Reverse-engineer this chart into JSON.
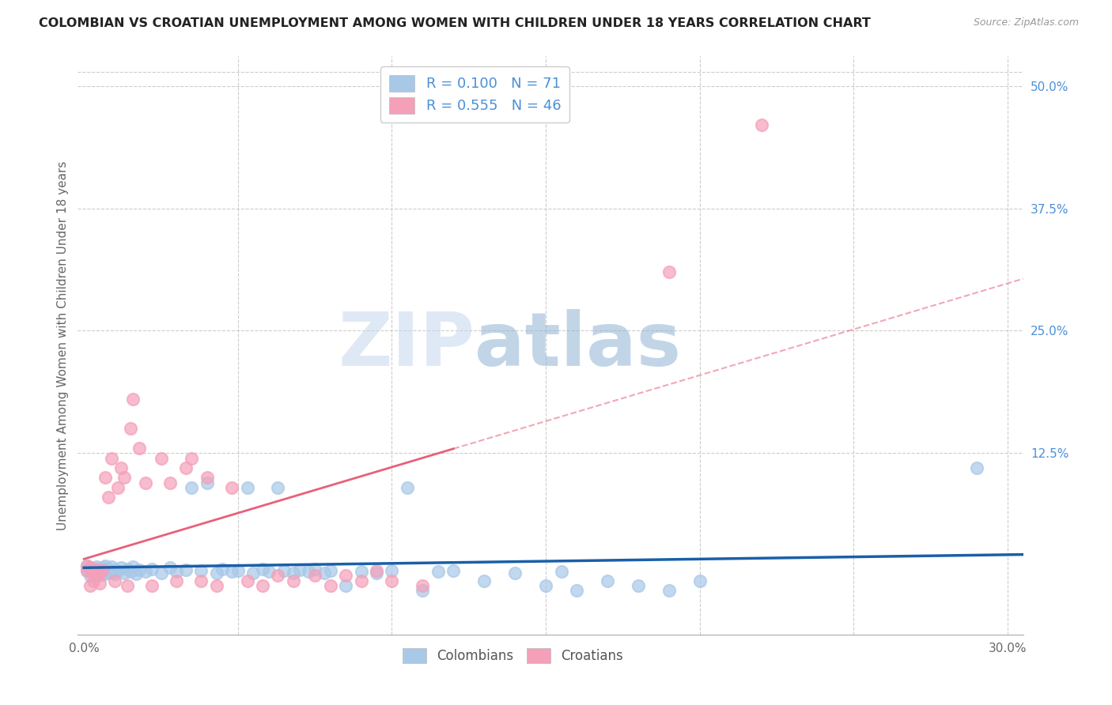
{
  "title": "COLOMBIAN VS CROATIAN UNEMPLOYMENT AMONG WOMEN WITH CHILDREN UNDER 18 YEARS CORRELATION CHART",
  "source": "Source: ZipAtlas.com",
  "ylabel": "Unemployment Among Women with Children Under 18 years",
  "xlabel_colombians": "Colombians",
  "xlabel_croatians": "Croatians",
  "xlim": [
    -0.002,
    0.305
  ],
  "ylim": [
    -0.06,
    0.53
  ],
  "xticks": [
    0.0,
    0.05,
    0.1,
    0.15,
    0.2,
    0.25,
    0.3
  ],
  "xtick_labels": [
    "0.0%",
    "",
    "",
    "",
    "",
    "",
    "30.0%"
  ],
  "ytick_vals_right": [
    0.5,
    0.375,
    0.25,
    0.125
  ],
  "ytick_labels_right": [
    "50.0%",
    "37.5%",
    "25.0%",
    "12.5%"
  ],
  "R_colombian": 0.1,
  "N_colombian": 71,
  "R_croatian": 0.555,
  "N_croatian": 46,
  "colombian_color": "#a8c8e8",
  "croatian_color": "#f4a0b8",
  "colombian_line_color": "#1a5fa8",
  "croatian_line_color": "#e8607a",
  "watermark_zip": "ZIP",
  "watermark_atlas": "atlas",
  "watermark_color_zip": "#c8d8ee",
  "watermark_color_atlas": "#a8c0d8",
  "colombian_x": [
    0.001,
    0.001,
    0.002,
    0.002,
    0.003,
    0.003,
    0.004,
    0.004,
    0.005,
    0.005,
    0.006,
    0.006,
    0.007,
    0.007,
    0.008,
    0.008,
    0.009,
    0.009,
    0.01,
    0.01,
    0.011,
    0.012,
    0.013,
    0.014,
    0.015,
    0.016,
    0.017,
    0.018,
    0.02,
    0.022,
    0.025,
    0.028,
    0.03,
    0.033,
    0.035,
    0.038,
    0.04,
    0.043,
    0.045,
    0.048,
    0.05,
    0.053,
    0.055,
    0.058,
    0.06,
    0.063,
    0.065,
    0.068,
    0.07,
    0.073,
    0.075,
    0.078,
    0.08,
    0.085,
    0.09,
    0.095,
    0.1,
    0.105,
    0.11,
    0.115,
    0.12,
    0.13,
    0.14,
    0.15,
    0.155,
    0.16,
    0.17,
    0.18,
    0.19,
    0.2,
    0.29
  ],
  "colombian_y": [
    0.005,
    0.01,
    0.008,
    0.0,
    0.004,
    0.007,
    0.003,
    0.009,
    0.006,
    0.002,
    0.008,
    0.001,
    0.005,
    0.01,
    0.007,
    0.003,
    0.009,
    0.004,
    0.006,
    0.002,
    0.005,
    0.008,
    0.003,
    0.007,
    0.004,
    0.009,
    0.002,
    0.006,
    0.004,
    0.007,
    0.003,
    0.008,
    0.004,
    0.006,
    0.09,
    0.005,
    0.095,
    0.003,
    0.007,
    0.004,
    0.005,
    0.09,
    0.003,
    0.007,
    0.004,
    0.09,
    0.005,
    0.003,
    0.006,
    0.004,
    0.007,
    0.003,
    0.005,
    -0.01,
    0.004,
    0.003,
    0.005,
    0.09,
    -0.015,
    0.004,
    0.005,
    -0.005,
    0.003,
    -0.01,
    0.004,
    -0.015,
    -0.005,
    -0.01,
    -0.015,
    -0.005,
    0.11
  ],
  "croatian_x": [
    0.001,
    0.001,
    0.002,
    0.002,
    0.003,
    0.003,
    0.004,
    0.004,
    0.005,
    0.005,
    0.006,
    0.007,
    0.008,
    0.009,
    0.01,
    0.011,
    0.012,
    0.013,
    0.014,
    0.015,
    0.016,
    0.018,
    0.02,
    0.022,
    0.025,
    0.028,
    0.03,
    0.033,
    0.035,
    0.038,
    0.04,
    0.043,
    0.048,
    0.053,
    0.058,
    0.063,
    0.068,
    0.075,
    0.08,
    0.085,
    0.09,
    0.095,
    0.1,
    0.11,
    0.19,
    0.22
  ],
  "croatian_y": [
    0.01,
    0.005,
    -0.01,
    0.008,
    -0.005,
    0.004,
    0.0,
    0.007,
    -0.008,
    0.003,
    0.006,
    0.1,
    0.08,
    0.12,
    -0.005,
    0.09,
    0.11,
    0.1,
    -0.01,
    0.15,
    0.18,
    0.13,
    0.095,
    -0.01,
    0.12,
    0.095,
    -0.005,
    0.11,
    0.12,
    -0.005,
    0.1,
    -0.01,
    0.09,
    -0.005,
    -0.01,
    0.0,
    -0.005,
    0.0,
    -0.01,
    0.0,
    -0.005,
    0.005,
    -0.005,
    -0.01,
    0.31,
    0.46
  ]
}
